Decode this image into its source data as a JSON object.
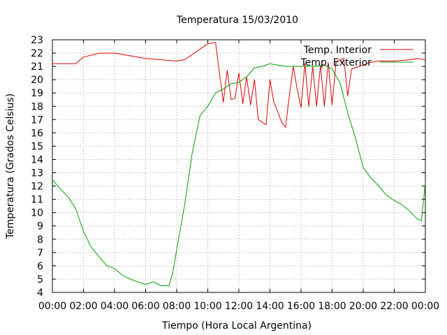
{
  "chart_data": {
    "type": "line",
    "title": "Temperatura 15/03/2010",
    "xlabel": "Tiempo (Hora Local Argentina)",
    "ylabel": "Temperatura (Grados Celsius)",
    "xlim": [
      "00:00",
      "24:00"
    ],
    "ylim": [
      4,
      23
    ],
    "x_ticks": [
      "00:00",
      "02:00",
      "04:00",
      "06:00",
      "08:00",
      "10:00",
      "12:00",
      "14:00",
      "16:00",
      "18:00",
      "20:00",
      "22:00",
      "00:00"
    ],
    "y_ticks": [
      4,
      5,
      6,
      7,
      8,
      9,
      10,
      11,
      12,
      13,
      14,
      15,
      16,
      17,
      18,
      19,
      20,
      21,
      22,
      23
    ],
    "grid": true,
    "legend_position": "top-right",
    "series": [
      {
        "name": "Temp. Interior",
        "color": "#e00000",
        "x": [
          "00:00",
          "01:30",
          "02:00",
          "03:00",
          "04:00",
          "05:00",
          "06:00",
          "07:00",
          "08:00",
          "08:30",
          "09:00",
          "09:30",
          "10:00",
          "10:30",
          "10:45",
          "11:00",
          "11:15",
          "11:30",
          "11:45",
          "12:00",
          "12:15",
          "12:30",
          "12:45",
          "13:00",
          "13:15",
          "13:30",
          "13:45",
          "14:00",
          "14:15",
          "14:30",
          "14:45",
          "15:00",
          "15:15",
          "15:30",
          "15:45",
          "16:00",
          "16:15",
          "16:30",
          "16:45",
          "17:00",
          "17:15",
          "17:30",
          "17:45",
          "18:00",
          "18:15",
          "18:30",
          "18:45",
          "19:00",
          "19:15",
          "19:30",
          "19:45",
          "20:00",
          "20:30",
          "21:00",
          "22:00",
          "23:00",
          "23:30",
          "24:00"
        ],
        "y": [
          21.2,
          21.2,
          21.7,
          22.0,
          22.0,
          21.8,
          21.6,
          21.5,
          21.4,
          21.5,
          21.9,
          22.3,
          22.7,
          22.8,
          20.5,
          18.3,
          20.7,
          18.5,
          18.6,
          20.5,
          18.2,
          20.2,
          18.1,
          20.0,
          17.0,
          16.8,
          16.6,
          20.0,
          18.3,
          17.6,
          16.8,
          16.4,
          18.8,
          21.0,
          19.3,
          17.9,
          21.2,
          18.0,
          21.0,
          18.0,
          21.1,
          18.0,
          21.3,
          18.1,
          21.3,
          21.5,
          21.6,
          18.8,
          20.8,
          20.9,
          21.0,
          21.1,
          21.3,
          21.4,
          21.4,
          21.5,
          21.6,
          21.5
        ]
      },
      {
        "name": "Temp. Exterior",
        "color": "#00a000",
        "x": [
          "00:00",
          "00:30",
          "01:00",
          "01:30",
          "02:00",
          "02:30",
          "03:00",
          "03:30",
          "04:00",
          "04:30",
          "05:00",
          "05:30",
          "06:00",
          "06:30",
          "07:00",
          "07:30",
          "07:45",
          "08:00",
          "08:30",
          "09:00",
          "09:30",
          "10:00",
          "10:30",
          "11:00",
          "11:30",
          "12:00",
          "12:30",
          "13:00",
          "13:30",
          "14:00",
          "14:30",
          "15:00",
          "15:30",
          "16:00",
          "16:30",
          "17:00",
          "17:30",
          "18:00",
          "18:30",
          "19:00",
          "19:30",
          "20:00",
          "20:30",
          "21:00",
          "21:30",
          "22:00",
          "22:30",
          "23:00",
          "23:30",
          "23:45",
          "24:00"
        ],
        "y": [
          12.5,
          11.8,
          11.2,
          10.3,
          8.6,
          7.4,
          6.7,
          6.0,
          5.8,
          5.3,
          5.0,
          4.8,
          4.6,
          4.8,
          4.5,
          4.5,
          5.5,
          7.2,
          10.5,
          14.5,
          17.3,
          18.0,
          19.0,
          19.3,
          19.7,
          19.8,
          20.2,
          20.9,
          21.0,
          21.2,
          21.1,
          21.0,
          21.0,
          21.0,
          21.0,
          21.0,
          21.1,
          20.8,
          19.8,
          17.5,
          15.6,
          13.4,
          12.6,
          12.0,
          11.3,
          10.9,
          10.6,
          10.1,
          9.5,
          9.4,
          12.3
        ]
      }
    ]
  }
}
